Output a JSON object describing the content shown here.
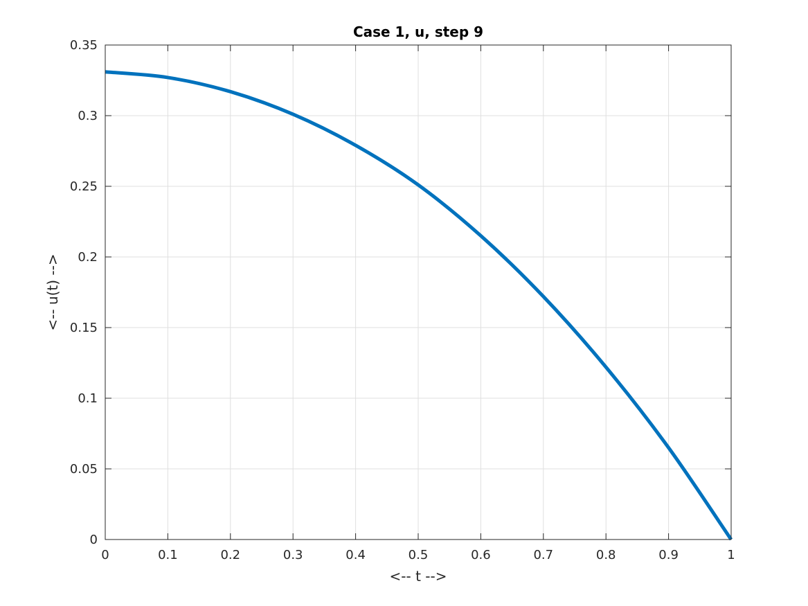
{
  "chart_data": {
    "type": "line",
    "title": "Case 1, u, step 9",
    "xlabel": "<-- t -->",
    "ylabel": "<-- u(t) -->",
    "xlim": [
      0,
      1
    ],
    "ylim": [
      0,
      0.35
    ],
    "xticks": [
      0,
      0.1,
      0.2,
      0.3,
      0.4,
      0.5,
      0.6,
      0.7,
      0.8,
      0.9,
      1
    ],
    "xtick_labels": [
      "0",
      "0.1",
      "0.2",
      "0.3",
      "0.4",
      "0.5",
      "0.6",
      "0.7",
      "0.8",
      "0.9",
      "1"
    ],
    "yticks": [
      0,
      0.05,
      0.1,
      0.15,
      0.2,
      0.25,
      0.3,
      0.35
    ],
    "ytick_labels": [
      "0",
      "0.05",
      "0.1",
      "0.15",
      "0.2",
      "0.25",
      "0.3",
      "0.35"
    ],
    "grid": true,
    "series": [
      {
        "color": "#0072bd",
        "x": [
          0,
          0.1,
          0.2,
          0.3,
          0.4,
          0.5,
          0.6,
          0.7,
          0.8,
          0.9,
          1.0
        ],
        "y": [
          0.331,
          0.327,
          0.317,
          0.301,
          0.279,
          0.251,
          0.215,
          0.172,
          0.122,
          0.065,
          0.0
        ]
      }
    ]
  }
}
